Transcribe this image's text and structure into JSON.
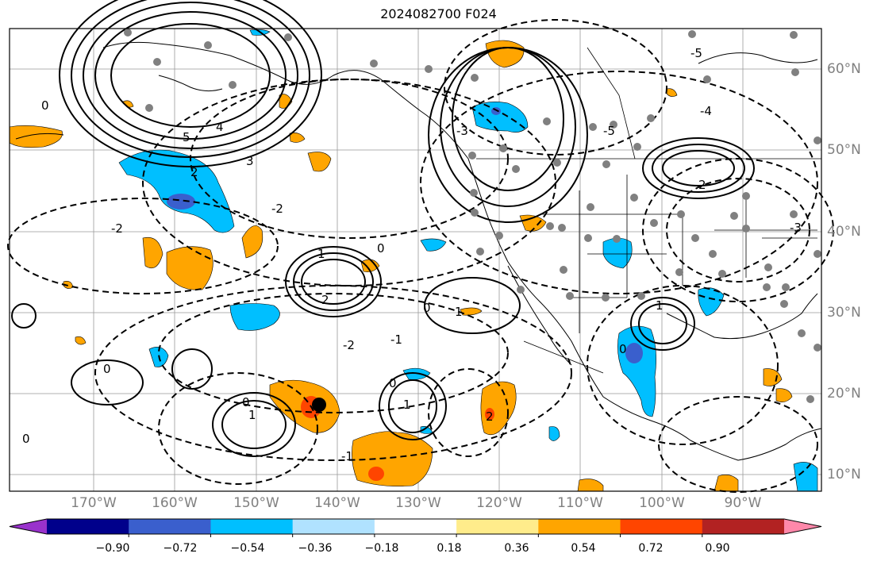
{
  "title": "2024082700 F024",
  "lat_labels": [
    "60°N",
    "50°N",
    "40°N",
    "30°N",
    "20°N",
    "10°N"
  ],
  "lon_labels": [
    "170°W",
    "160°W",
    "150°W",
    "140°W",
    "130°W",
    "120°W",
    "110°W",
    "100°W",
    "90°W"
  ],
  "colorbar": {
    "ticks": [
      "−0.90",
      "−0.72",
      "−0.54",
      "−0.36",
      "−0.18",
      "0.18",
      "0.36",
      "0.54",
      "0.72",
      "0.90"
    ],
    "colors": [
      "#9932cc",
      "#00008b",
      "#3a5fcd",
      "#00bfff",
      "#b0e2ff",
      "#ffffff",
      "#ffec8b",
      "#ffa500",
      "#ff4500",
      "#b22222",
      "#ff88aa"
    ]
  },
  "contour_labels": [
    "0",
    "5",
    "4",
    "3",
    "2",
    "-2",
    "-1",
    "1",
    "0",
    "-5",
    "-4",
    "-3"
  ]
}
